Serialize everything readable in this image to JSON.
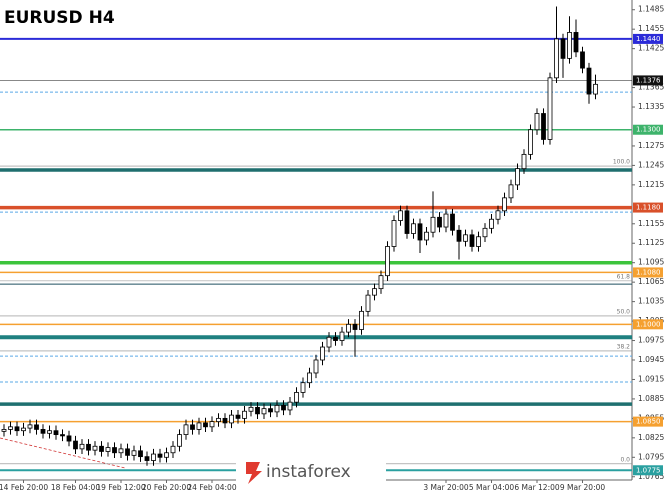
{
  "chart_data": {
    "type": "candlestick",
    "title": "EURUSD H4",
    "logo": "instaforex",
    "categories": [
      null,
      null,
      null,
      "14 Feb 20:00",
      null,
      null,
      null,
      null,
      null,
      null,
      null,
      "18 Feb 04:00",
      null,
      null,
      null,
      null,
      null,
      null,
      "19 Feb 12:00",
      null,
      null,
      null,
      null,
      null,
      null,
      "20 Feb 20:00",
      null,
      null,
      null,
      null,
      null,
      null,
      "24 Feb 04:00",
      null,
      null,
      null,
      null,
      null,
      null,
      null,
      null,
      null,
      null,
      null,
      null,
      null,
      null,
      null,
      null,
      null,
      null,
      null,
      null,
      null,
      null,
      null,
      null,
      null,
      null,
      null,
      null,
      null,
      null,
      null,
      null,
      null,
      null,
      null,
      "3 Mar 20:00",
      null,
      null,
      null,
      null,
      null,
      null,
      "5 Mar 04:00",
      null,
      null,
      null,
      null,
      null,
      null,
      "6 Mar 12:00",
      null,
      null,
      null,
      null,
      null,
      null,
      "9 Mar 20:00",
      null,
      null
    ],
    "open": [
      1.0835,
      1.0838,
      1.0842,
      1.0836,
      1.084,
      1.0845,
      1.0838,
      1.0832,
      1.0836,
      1.083,
      1.0828,
      1.082,
      1.0808,
      1.0815,
      1.0806,
      1.0812,
      1.0804,
      1.081,
      1.0802,
      1.0808,
      1.0798,
      1.0805,
      1.0796,
      1.079,
      1.08,
      1.0795,
      1.0802,
      1.0812,
      1.083,
      1.0845,
      1.0838,
      1.0848,
      1.0842,
      1.085,
      1.0855,
      1.0848,
      1.086,
      1.0855,
      1.0866,
      1.0872,
      1.0862,
      1.087,
      1.0865,
      1.0875,
      1.0868,
      1.088,
      1.0895,
      1.091,
      1.0925,
      1.0945,
      1.0965,
      1.098,
      1.0975,
      1.0988,
      1.1,
      1.0992,
      1.102,
      1.1045,
      1.1055,
      1.1075,
      1.112,
      1.116,
      1.1175,
      1.114,
      1.1155,
      1.113,
      1.1142,
      1.1165,
      1.115,
      1.117,
      1.1145,
      1.1128,
      1.1138,
      1.112,
      1.1135,
      1.1148,
      1.1162,
      1.1175,
      1.1195,
      1.1215,
      1.124,
      1.1262,
      1.13,
      1.1325,
      1.1285,
      1.138,
      1.144,
      1.141,
      1.145,
      1.142,
      1.1395,
      1.1355
    ],
    "high": [
      1.0846,
      1.085,
      1.085,
      1.0848,
      1.0853,
      1.0853,
      1.0846,
      1.0844,
      1.0844,
      1.0838,
      1.0836,
      1.0828,
      1.0823,
      1.0823,
      1.082,
      1.082,
      1.0818,
      1.0818,
      1.0816,
      1.0816,
      1.0813,
      1.0813,
      1.0804,
      1.0808,
      1.0808,
      1.081,
      1.082,
      1.0838,
      1.0853,
      1.0853,
      1.0856,
      1.0856,
      1.0858,
      1.0863,
      1.0863,
      1.0868,
      1.0868,
      1.0874,
      1.088,
      1.088,
      1.0878,
      1.0878,
      1.0883,
      1.0883,
      1.0888,
      1.0903,
      1.0918,
      1.0933,
      1.0953,
      1.0973,
      1.0988,
      1.0988,
      1.0996,
      1.1008,
      1.1008,
      1.1028,
      1.1053,
      1.1063,
      1.1083,
      1.1128,
      1.1168,
      1.1183,
      1.1183,
      1.1163,
      1.1163,
      1.115,
      1.1205,
      1.1173,
      1.1178,
      1.1178,
      1.1153,
      1.1146,
      1.1146,
      1.1143,
      1.1156,
      1.117,
      1.1183,
      1.1203,
      1.1223,
      1.1248,
      1.127,
      1.1308,
      1.1333,
      1.1333,
      1.1388,
      1.149,
      1.1448,
      1.1475,
      1.147,
      1.1428,
      1.1403,
      1.1385
    ],
    "low": [
      1.0827,
      1.083,
      1.0828,
      1.0828,
      1.0832,
      1.083,
      1.0824,
      1.0824,
      1.0822,
      1.082,
      1.0812,
      1.08,
      1.08,
      1.0798,
      1.0798,
      1.0796,
      1.0796,
      1.0794,
      1.0794,
      1.079,
      1.079,
      1.0788,
      1.0782,
      1.0782,
      1.0787,
      1.0787,
      1.0794,
      1.0804,
      1.0822,
      1.083,
      1.083,
      1.0834,
      1.0834,
      1.0842,
      1.084,
      1.084,
      1.0847,
      1.0847,
      1.0858,
      1.0854,
      1.0854,
      1.0857,
      1.0857,
      1.086,
      1.086,
      1.0872,
      1.0887,
      1.0902,
      1.0917,
      1.0937,
      1.0957,
      1.0967,
      1.0967,
      1.098,
      1.095,
      1.0984,
      1.1012,
      1.1037,
      1.1047,
      1.1067,
      1.1112,
      1.1152,
      1.1132,
      1.1132,
      1.111,
      1.1122,
      1.1134,
      1.1142,
      1.1142,
      1.1137,
      1.11,
      1.112,
      1.1112,
      1.1112,
      1.1127,
      1.114,
      1.1154,
      1.1167,
      1.1187,
      1.1207,
      1.1232,
      1.1254,
      1.1292,
      1.1277,
      1.1277,
      1.1372,
      1.138,
      1.1402,
      1.1412,
      1.1387,
      1.134,
      1.1347
    ],
    "close": [
      1.0838,
      1.0842,
      1.0836,
      1.084,
      1.0845,
      1.0838,
      1.0832,
      1.0836,
      1.083,
      1.0828,
      1.082,
      1.0808,
      1.0815,
      1.0806,
      1.0812,
      1.0804,
      1.081,
      1.0802,
      1.0808,
      1.0798,
      1.0805,
      1.0796,
      1.079,
      1.08,
      1.0795,
      1.0802,
      1.0812,
      1.083,
      1.0845,
      1.0838,
      1.0848,
      1.0842,
      1.085,
      1.0855,
      1.0848,
      1.086,
      1.0855,
      1.0866,
      1.0872,
      1.0862,
      1.087,
      1.0865,
      1.0875,
      1.0868,
      1.088,
      1.0895,
      1.091,
      1.0925,
      1.0945,
      1.0965,
      1.098,
      1.0975,
      1.0988,
      1.1,
      1.0992,
      1.102,
      1.1045,
      1.1055,
      1.1075,
      1.112,
      1.116,
      1.1175,
      1.114,
      1.1155,
      1.113,
      1.1142,
      1.1165,
      1.115,
      1.117,
      1.1145,
      1.1128,
      1.1138,
      1.112,
      1.1135,
      1.1148,
      1.1162,
      1.1175,
      1.1195,
      1.1215,
      1.124,
      1.1262,
      1.13,
      1.1325,
      1.1285,
      1.138,
      1.144,
      1.141,
      1.145,
      1.142,
      1.1395,
      1.1355,
      1.137
    ],
    "up_color": "#ffffff",
    "down_color": "#000000",
    "ylim": [
      1.076,
      1.15
    ],
    "yticks": [
      1.1485,
      1.1455,
      1.1425,
      1.1365,
      1.1335,
      1.1275,
      1.1245,
      1.1215,
      1.1155,
      1.1125,
      1.1095,
      1.1065,
      1.1035,
      1.1005,
      1.0975,
      1.0945,
      1.0915,
      1.0885,
      1.0855,
      1.0825,
      1.0795,
      1.0765
    ],
    "levels": [
      {
        "value": 1.144,
        "label": "1.1440",
        "color": "#2b2bd8",
        "width": 2
      },
      {
        "value": 1.1376,
        "label": "1.1376",
        "color": "#111111",
        "width": 0.5
      },
      {
        "value": 1.1358,
        "color": "#5aa9e6",
        "width": 1,
        "dashed": true
      },
      {
        "value": 1.13,
        "label": "1.1300",
        "color": "#3db36b",
        "width": 1.5
      },
      {
        "value": 1.1238,
        "color": "#1f6e6e",
        "width": 3.5
      },
      {
        "value": 1.118,
        "label": "1.1180",
        "color": "#d9502a",
        "width": 3.5
      },
      {
        "value": 1.1173,
        "color": "#5aa9e6",
        "width": 1,
        "dashed": true
      },
      {
        "value": 1.1095,
        "color": "#3cc43c",
        "width": 3.5
      },
      {
        "value": 1.108,
        "label": "1.1080",
        "color": "#f5a030",
        "width": 1.5
      },
      {
        "value": 1.1062,
        "color": "#1f4f5f",
        "width": 1
      },
      {
        "value": 1.1,
        "label": "1.1000",
        "color": "#f5a030",
        "width": 1.5
      },
      {
        "value": 1.098,
        "color": "#1f8080",
        "width": 4
      },
      {
        "value": 1.0951,
        "color": "#5aa9e6",
        "width": 1,
        "dashed": true
      },
      {
        "value": 1.0911,
        "color": "#5aa9e6",
        "width": 1,
        "dashed": true
      },
      {
        "value": 1.0877,
        "color": "#1f7070",
        "width": 3.5
      },
      {
        "value": 1.085,
        "label": "1.0850",
        "color": "#f5a030",
        "width": 1.5
      },
      {
        "value": 1.0775,
        "label": "1.0775",
        "color": "#2aa0a0",
        "width": 2
      }
    ],
    "fib_color": "#888888",
    "fibs": [
      {
        "value": 1.1244,
        "label": "100.0"
      },
      {
        "value": 1.1067,
        "label": "61.8"
      },
      {
        "value": 1.1013,
        "label": "50.0"
      },
      {
        "value": 1.0959,
        "label": "38.2"
      },
      {
        "value": 1.0785,
        "label": "0.0"
      }
    ]
  }
}
